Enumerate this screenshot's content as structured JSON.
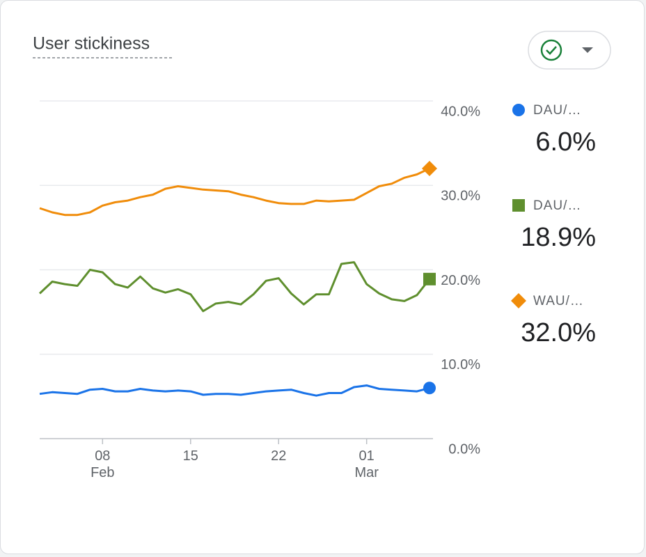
{
  "chart_data": {
    "type": "line",
    "title": "User stickiness",
    "categories": [
      null,
      null,
      null,
      null,
      null,
      "08\nFeb",
      null,
      null,
      null,
      null,
      null,
      null,
      "15",
      null,
      null,
      null,
      null,
      null,
      null,
      "22",
      null,
      null,
      null,
      null,
      null,
      null,
      "01\nMar",
      null,
      null,
      null,
      null,
      null
    ],
    "series": [
      {
        "name": "DAU/…",
        "summary": "6.0%",
        "marker": "circle",
        "color": "#1a73e8",
        "values": [
          5.3,
          5.5,
          5.4,
          5.3,
          5.8,
          5.9,
          5.6,
          5.6,
          5.9,
          5.7,
          5.6,
          5.7,
          5.6,
          5.2,
          5.3,
          5.3,
          5.2,
          5.4,
          5.6,
          5.7,
          5.8,
          5.4,
          5.1,
          5.4,
          5.4,
          6.1,
          6.3,
          5.9,
          5.8,
          5.7,
          5.6,
          6.0
        ]
      },
      {
        "name": "DAU/…",
        "summary": "18.9%",
        "marker": "square",
        "color": "#5f8f2e",
        "values": [
          17.2,
          18.6,
          18.3,
          18.1,
          20.0,
          19.7,
          18.3,
          17.9,
          19.2,
          17.8,
          17.3,
          17.7,
          17.1,
          15.1,
          16.0,
          16.2,
          15.9,
          17.1,
          18.7,
          19.0,
          17.2,
          15.9,
          17.1,
          17.1,
          20.7,
          20.9,
          18.3,
          17.2,
          16.5,
          16.3,
          17.0,
          18.9
        ]
      },
      {
        "name": "WAU/…",
        "summary": "32.0%",
        "marker": "diamond",
        "color": "#f08c0a",
        "values": [
          27.3,
          26.8,
          26.5,
          26.5,
          26.8,
          27.6,
          28.0,
          28.2,
          28.6,
          28.9,
          29.6,
          29.9,
          29.7,
          29.5,
          29.4,
          29.3,
          28.9,
          28.6,
          28.2,
          27.9,
          27.8,
          27.8,
          28.2,
          28.1,
          28.2,
          28.3,
          29.1,
          29.9,
          30.2,
          30.9,
          31.3,
          32.0
        ]
      }
    ],
    "ylim": [
      0,
      40
    ],
    "yticks": [
      {
        "value": 0,
        "label": "0.0%"
      },
      {
        "value": 10,
        "label": "10.0%"
      },
      {
        "value": 20,
        "label": "20.0%"
      },
      {
        "value": 30,
        "label": "30.0%"
      },
      {
        "value": 40,
        "label": "40.0%"
      }
    ],
    "grid": true
  }
}
